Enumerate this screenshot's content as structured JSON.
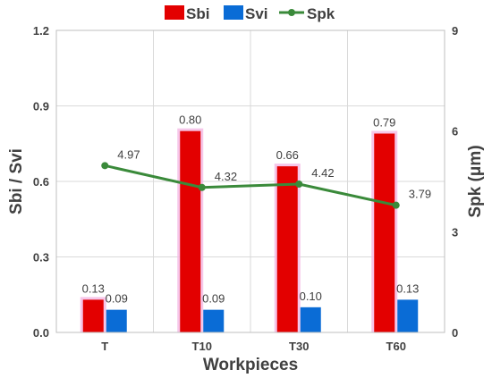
{
  "chart_data": {
    "type": "bar",
    "categories": [
      "T",
      "T10",
      "T30",
      "T60"
    ],
    "xlabel": "Workpieces",
    "ylabel": "Sbi / Svi",
    "y2label": "Spk (μm)",
    "ylim": [
      0,
      1.2
    ],
    "y2lim": [
      0,
      9
    ],
    "yticks": [
      "0.0",
      "0.3",
      "0.6",
      "0.9",
      "1.2"
    ],
    "y2ticks": [
      "0",
      "3",
      "6",
      "9"
    ],
    "grid": true,
    "legend_position": "top-center",
    "series": [
      {
        "name": "Sbi",
        "kind": "bar",
        "axis": "left",
        "color": "#e30000",
        "glow": "#f4b8e4",
        "values": [
          0.13,
          0.8,
          0.66,
          0.79
        ],
        "labels": [
          "0.13",
          "0.80",
          "0.66",
          "0.79"
        ]
      },
      {
        "name": "Svi",
        "kind": "bar",
        "axis": "left",
        "color": "#0a6cd6",
        "values": [
          0.09,
          0.09,
          0.1,
          0.13
        ],
        "labels": [
          "0.09",
          "0.09",
          "0.10",
          "0.13"
        ]
      },
      {
        "name": "Spk",
        "kind": "line",
        "axis": "right",
        "color": "#3a8a3a",
        "values": [
          4.97,
          4.32,
          4.42,
          3.79
        ],
        "labels": [
          "4.97",
          "4.32",
          "4.42",
          "3.79"
        ]
      }
    ]
  }
}
